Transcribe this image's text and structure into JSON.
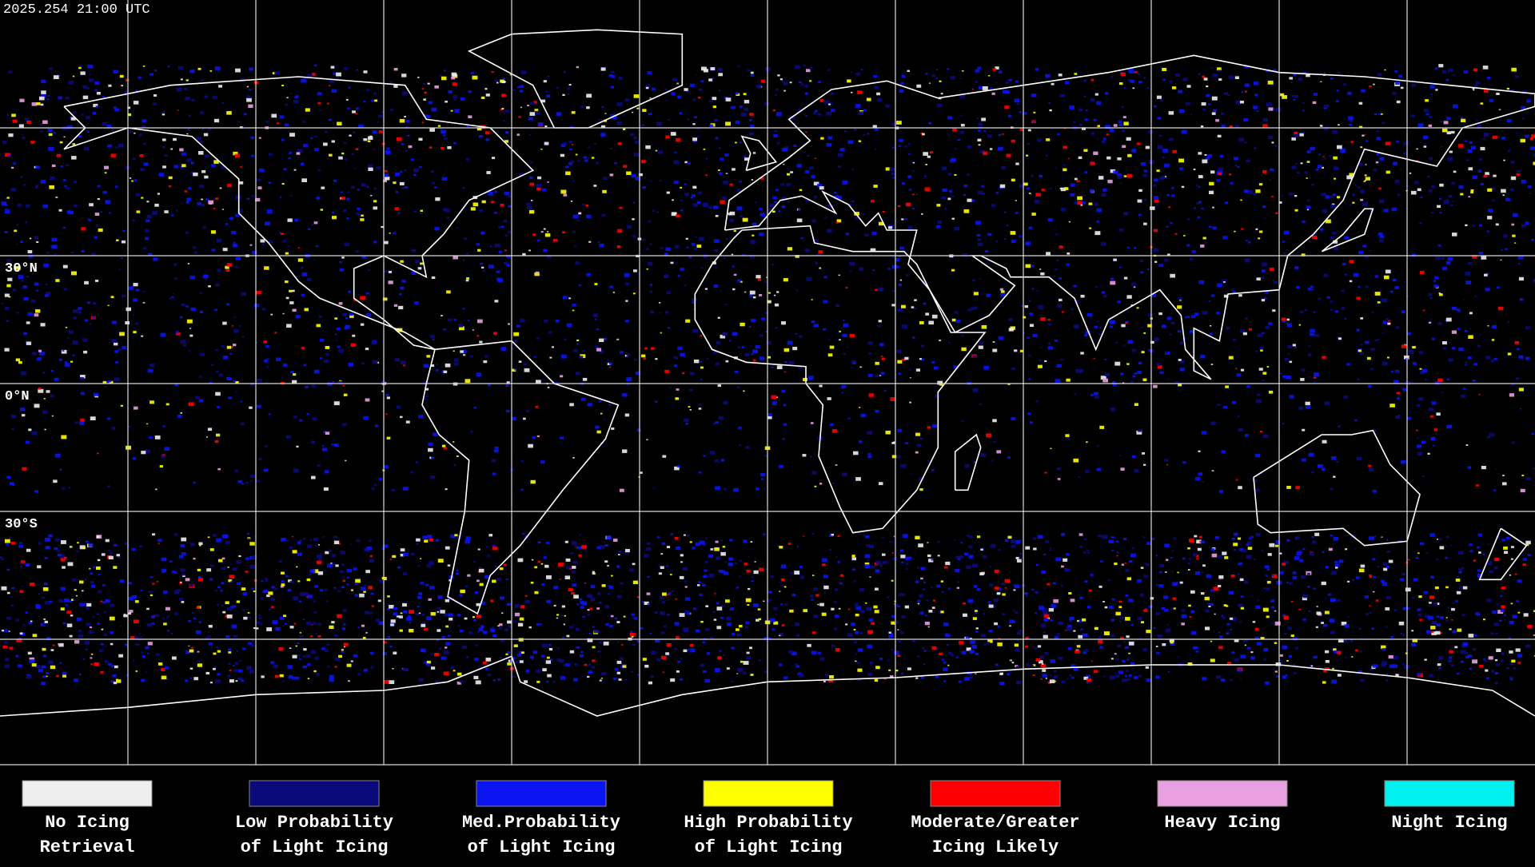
{
  "header": {
    "timestamp": "2025.254 21:00 UTC"
  },
  "map": {
    "latitude_labels": [
      "30°N",
      "0°N",
      "30°S"
    ]
  },
  "legend": {
    "items": [
      {
        "lines": [
          "No Icing",
          "Retrieval"
        ],
        "color": "#eeeeee"
      },
      {
        "lines": [
          "Low Probability",
          "of Light Icing"
        ],
        "color": "#0a0a7a"
      },
      {
        "lines": [
          "Med.Probability",
          "of Light Icing"
        ],
        "color": "#0a14f0"
      },
      {
        "lines": [
          "High Probability",
          "of Light Icing"
        ],
        "color": "#ffff00"
      },
      {
        "lines": [
          "Moderate/Greater",
          "Icing Likely"
        ],
        "color": "#ff0000"
      },
      {
        "lines": [
          "Heavy Icing"
        ],
        "color": "#e8a0e0"
      },
      {
        "lines": [
          "Night Icing"
        ],
        "color": "#00f0f0"
      }
    ]
  }
}
